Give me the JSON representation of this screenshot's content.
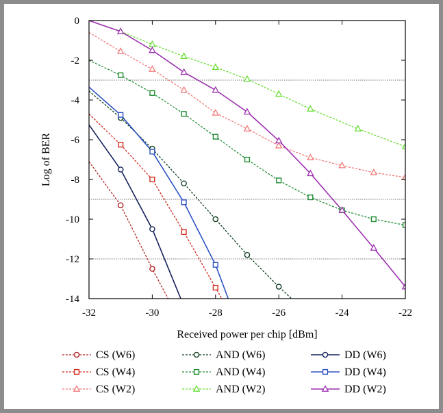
{
  "chart_data": {
    "type": "line",
    "title": "",
    "xlabel": "Received power per chip [dBm]",
    "ylabel": "Log of BER",
    "xlim": [
      -32,
      -22
    ],
    "ylim": [
      -14,
      0
    ],
    "xticks": [
      -32,
      -30,
      -28,
      -26,
      -24,
      -22
    ],
    "yticks": [
      0,
      -2,
      -4,
      -6,
      -8,
      -10,
      -12,
      -14
    ],
    "reference_lines": [
      -3,
      -9,
      -12
    ],
    "legend_position": "bottom",
    "series": [
      {
        "name": "CS (W6)",
        "color": "#b22222",
        "marker": "circle",
        "style": "dashed",
        "x": [
          -32,
          -31,
          -30,
          -29.5
        ],
        "y": [
          -7.1,
          -9.3,
          -12.5,
          -14
        ]
      },
      {
        "name": "CS (W4)",
        "color": "#d42a1e",
        "marker": "square",
        "style": "dashed",
        "x": [
          -32,
          -31,
          -30,
          -29,
          -28,
          -27.8
        ],
        "y": [
          -4.7,
          -6.25,
          -8.0,
          -10.65,
          -13.45,
          -14
        ]
      },
      {
        "name": "CS (W2)",
        "color": "#f07878",
        "marker": "triangle",
        "style": "dashed",
        "x": [
          -32,
          -31,
          -30,
          -29,
          -28,
          -27,
          -26,
          -25,
          -24,
          -23,
          -22
        ],
        "y": [
          -0.6,
          -1.55,
          -2.45,
          -3.5,
          -4.65,
          -5.45,
          -6.3,
          -6.9,
          -7.3,
          -7.65,
          -7.9
        ]
      },
      {
        "name": "AND (W6)",
        "color": "#0f3d1e",
        "marker": "circle",
        "style": "dashed",
        "x": [
          -32,
          -31,
          -30,
          -29,
          -28,
          -27,
          -26,
          -25.6
        ],
        "y": [
          -3.55,
          -4.9,
          -6.45,
          -8.2,
          -10.0,
          -11.8,
          -13.4,
          -14
        ]
      },
      {
        "name": "AND (W4)",
        "color": "#1e8c32",
        "marker": "square",
        "style": "dashed",
        "x": [
          -32,
          -31,
          -30,
          -29,
          -28,
          -27,
          -26,
          -25,
          -24,
          -23,
          -22
        ],
        "y": [
          -2.0,
          -2.75,
          -3.65,
          -4.7,
          -5.85,
          -7.0,
          -8.05,
          -8.9,
          -9.55,
          -10.0,
          -10.3
        ]
      },
      {
        "name": "AND (W2)",
        "color": "#66dd33",
        "marker": "triangle",
        "style": "dashed",
        "x": [
          -31,
          -30,
          -29,
          -28,
          -27,
          -26,
          -25,
          -23.5,
          -22
        ],
        "y": [
          -0.55,
          -1.2,
          -1.8,
          -2.35,
          -2.95,
          -3.7,
          -4.45,
          -5.45,
          -6.35
        ]
      },
      {
        "name": "DD (W6)",
        "color": "#14205a",
        "marker": "circle",
        "style": "solid",
        "x": [
          -32,
          -31,
          -30,
          -29.1
        ],
        "y": [
          -5.25,
          -7.5,
          -10.5,
          -14
        ]
      },
      {
        "name": "DD (W4)",
        "color": "#2c52c2",
        "marker": "square",
        "style": "solid",
        "x": [
          -32,
          -31,
          -30,
          -29,
          -28,
          -27.6
        ],
        "y": [
          -3.35,
          -4.75,
          -6.6,
          -9.15,
          -12.3,
          -14
        ]
      },
      {
        "name": "DD (W2)",
        "color": "#9b2fae",
        "marker": "triangle",
        "style": "solid",
        "x": [
          -32,
          -31,
          -30,
          -29,
          -28,
          -27,
          -26,
          -25,
          -24,
          -23,
          -22
        ],
        "y": [
          0.0,
          -0.55,
          -1.5,
          -2.6,
          -3.5,
          -4.6,
          -6.05,
          -7.7,
          -9.55,
          -11.45,
          -13.4
        ]
      }
    ]
  }
}
